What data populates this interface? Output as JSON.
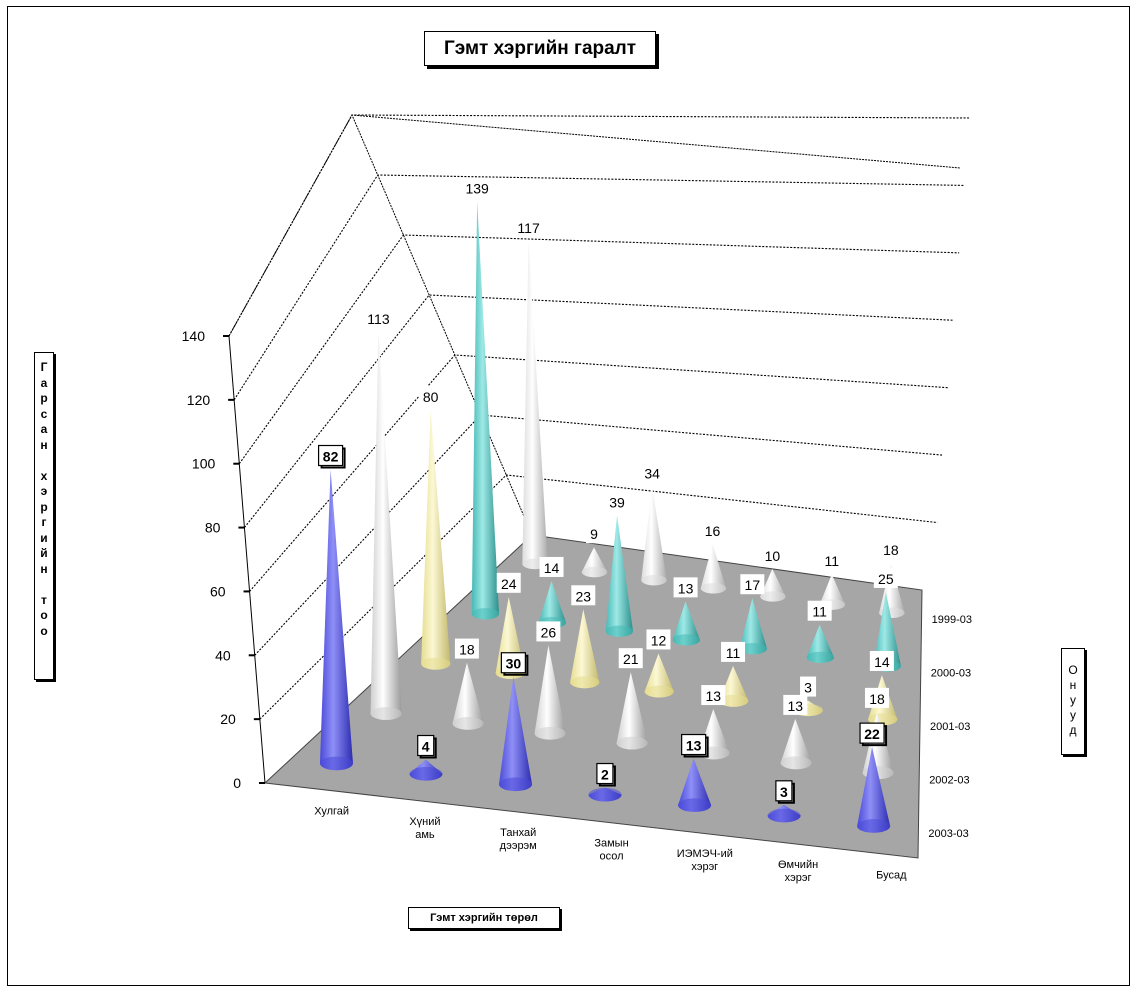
{
  "title": "Гэмт хэргийн гаралт",
  "colors": {
    "2003-03": "#6b6bf0",
    "2002-03": "#f5f5f5",
    "2001-03": "#f7f2b0",
    "2000-03": "#6cd4d0",
    "1999-03": "#ffffff",
    "floor": "#a6a6a6"
  },
  "chart_data": {
    "type": "bar",
    "variant": "3d-cone",
    "title": "Гэмт хэргийн гаралт",
    "xlabel": "Гэмт хэргийн төрөл",
    "ylabel": "Гарсан хэргийн тоо",
    "zlabel": "Онууд",
    "ylim": [
      0,
      140
    ],
    "yticks": [
      "0",
      "20",
      "40",
      "60",
      "80",
      "100",
      "120",
      "140"
    ],
    "categories": [
      "Хулгай",
      "Хүний амь",
      "Танхай дээрэм",
      "Замын осол",
      "ИЭМЭЧ-ий хэрэг",
      "Өмчийн хэрэг",
      "Бусад"
    ],
    "category_lines": [
      [
        "Хулгай"
      ],
      [
        "Хүний",
        "амь"
      ],
      [
        "Танхай",
        "дээрэм"
      ],
      [
        "Замын",
        "осол"
      ],
      [
        "ИЭМЭЧ-ий",
        "хэрэг"
      ],
      [
        "Өмчийн",
        "хэрэг"
      ],
      [
        "Бусад"
      ]
    ],
    "series": [
      {
        "name": "2003-03",
        "values": [
          82,
          4,
          30,
          2,
          13,
          3,
          22
        ]
      },
      {
        "name": "2002-03",
        "values": [
          113,
          18,
          26,
          21,
          13,
          13,
          18
        ]
      },
      {
        "name": "2001-03",
        "values": [
          80,
          24,
          23,
          12,
          11,
          3,
          14
        ]
      },
      {
        "name": "2000-03",
        "values": [
          139,
          14,
          39,
          13,
          17,
          11,
          25
        ]
      },
      {
        "name": "1999-03",
        "values": [
          117,
          9,
          34,
          16,
          10,
          11,
          18
        ]
      }
    ],
    "grid": true,
    "legend": "none"
  }
}
